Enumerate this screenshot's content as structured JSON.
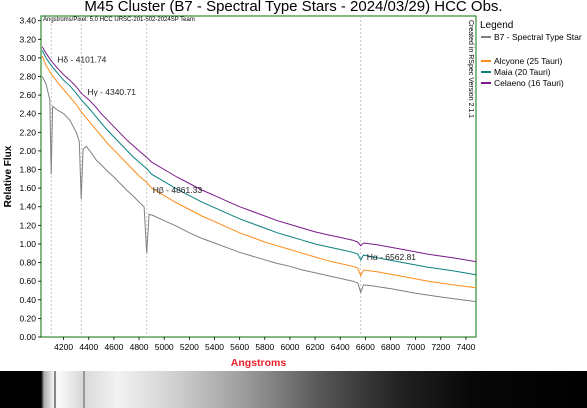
{
  "chart_data": {
    "type": "line",
    "title": "M45 Cluster (B7 - Spectral Type Stars - 2024/03/29) HCC Obs.",
    "subtitle": "Angstroms/Pixel: 5.0 HCC URSC-201-502-2024SP Team",
    "xlabel": "Angstroms",
    "ylabel": "Relative Flux",
    "xlim": [
      4020,
      7480
    ],
    "ylim": [
      0,
      3.45
    ],
    "xticks": [
      4200,
      4400,
      4600,
      4800,
      5000,
      5200,
      5400,
      5600,
      5800,
      6000,
      6200,
      6400,
      6600,
      6800,
      7000,
      7200,
      7400
    ],
    "yticks": [
      0.0,
      0.2,
      0.4,
      0.6,
      0.8,
      1.0,
      1.2,
      1.4,
      1.6,
      1.8,
      2.0,
      2.2,
      2.4,
      2.6,
      2.8,
      3.0,
      3.2,
      3.4
    ],
    "legend_title": "Legend",
    "legend_position": "right",
    "side_label": "Created in RSpec Version 2.1.1",
    "series": [
      {
        "name": "B7 - Spectral Type Star",
        "color": "#808080",
        "points": [
          [
            4030,
            2.8
          ],
          [
            4060,
            2.72
          ],
          [
            4090,
            2.55
          ],
          [
            4101,
            1.75
          ],
          [
            4112,
            2.48
          ],
          [
            4150,
            2.44
          ],
          [
            4200,
            2.4
          ],
          [
            4250,
            2.33
          ],
          [
            4300,
            2.2
          ],
          [
            4325,
            2.1
          ],
          [
            4340,
            1.48
          ],
          [
            4355,
            2.02
          ],
          [
            4380,
            2.05
          ],
          [
            4420,
            1.98
          ],
          [
            4460,
            1.9
          ],
          [
            4500,
            1.85
          ],
          [
            4550,
            1.78
          ],
          [
            4600,
            1.72
          ],
          [
            4650,
            1.65
          ],
          [
            4700,
            1.58
          ],
          [
            4750,
            1.52
          ],
          [
            4800,
            1.45
          ],
          [
            4840,
            1.4
          ],
          [
            4861,
            0.9
          ],
          [
            4880,
            1.32
          ],
          [
            4920,
            1.3
          ],
          [
            5000,
            1.25
          ],
          [
            5100,
            1.19
          ],
          [
            5200,
            1.12
          ],
          [
            5300,
            1.06
          ],
          [
            5400,
            1.01
          ],
          [
            5500,
            0.96
          ],
          [
            5600,
            0.91
          ],
          [
            5700,
            0.87
          ],
          [
            5800,
            0.83
          ],
          [
            5900,
            0.79
          ],
          [
            6000,
            0.76
          ],
          [
            6100,
            0.72
          ],
          [
            6200,
            0.69
          ],
          [
            6300,
            0.66
          ],
          [
            6400,
            0.63
          ],
          [
            6500,
            0.6
          ],
          [
            6540,
            0.58
          ],
          [
            6563,
            0.48
          ],
          [
            6585,
            0.56
          ],
          [
            6650,
            0.55
          ],
          [
            6800,
            0.52
          ],
          [
            7000,
            0.47
          ],
          [
            7200,
            0.43
          ],
          [
            7480,
            0.38
          ]
        ]
      },
      {
        "name": "Alcyone (25 Tauri)",
        "color": "#ff8c1a",
        "points": [
          [
            4030,
            3.02
          ],
          [
            4060,
            2.92
          ],
          [
            4100,
            2.83
          ],
          [
            4150,
            2.74
          ],
          [
            4200,
            2.66
          ],
          [
            4250,
            2.58
          ],
          [
            4300,
            2.5
          ],
          [
            4340,
            2.42
          ],
          [
            4400,
            2.32
          ],
          [
            4450,
            2.24
          ],
          [
            4500,
            2.16
          ],
          [
            4550,
            2.08
          ],
          [
            4600,
            2.01
          ],
          [
            4650,
            1.94
          ],
          [
            4700,
            1.87
          ],
          [
            4750,
            1.8
          ],
          [
            4800,
            1.73
          ],
          [
            4861,
            1.66
          ],
          [
            4900,
            1.6
          ],
          [
            5000,
            1.52
          ],
          [
            5100,
            1.44
          ],
          [
            5200,
            1.37
          ],
          [
            5300,
            1.3
          ],
          [
            5400,
            1.24
          ],
          [
            5500,
            1.18
          ],
          [
            5600,
            1.12
          ],
          [
            5700,
            1.07
          ],
          [
            5800,
            1.02
          ],
          [
            5900,
            0.98
          ],
          [
            6000,
            0.94
          ],
          [
            6100,
            0.9
          ],
          [
            6200,
            0.86
          ],
          [
            6300,
            0.82
          ],
          [
            6400,
            0.79
          ],
          [
            6500,
            0.76
          ],
          [
            6540,
            0.74
          ],
          [
            6563,
            0.66
          ],
          [
            6585,
            0.72
          ],
          [
            6700,
            0.7
          ],
          [
            6900,
            0.65
          ],
          [
            7100,
            0.6
          ],
          [
            7300,
            0.56
          ],
          [
            7480,
            0.53
          ]
        ]
      },
      {
        "name": "Maia (20 Tauri)",
        "color": "#0a7f7f",
        "points": [
          [
            4030,
            3.08
          ],
          [
            4060,
            3.0
          ],
          [
            4100,
            2.92
          ],
          [
            4150,
            2.84
          ],
          [
            4200,
            2.76
          ],
          [
            4250,
            2.7
          ],
          [
            4300,
            2.62
          ],
          [
            4340,
            2.55
          ],
          [
            4400,
            2.46
          ],
          [
            4450,
            2.38
          ],
          [
            4500,
            2.3
          ],
          [
            4550,
            2.22
          ],
          [
            4600,
            2.15
          ],
          [
            4650,
            2.08
          ],
          [
            4700,
            2.01
          ],
          [
            4750,
            1.94
          ],
          [
            4800,
            1.88
          ],
          [
            4861,
            1.81
          ],
          [
            4900,
            1.75
          ],
          [
            5000,
            1.67
          ],
          [
            5100,
            1.59
          ],
          [
            5200,
            1.52
          ],
          [
            5300,
            1.45
          ],
          [
            5400,
            1.39
          ],
          [
            5500,
            1.33
          ],
          [
            5600,
            1.27
          ],
          [
            5700,
            1.22
          ],
          [
            5800,
            1.17
          ],
          [
            5900,
            1.12
          ],
          [
            6000,
            1.08
          ],
          [
            6100,
            1.04
          ],
          [
            6200,
            1.0
          ],
          [
            6300,
            0.97
          ],
          [
            6400,
            0.94
          ],
          [
            6500,
            0.91
          ],
          [
            6540,
            0.89
          ],
          [
            6563,
            0.83
          ],
          [
            6585,
            0.88
          ],
          [
            6700,
            0.85
          ],
          [
            6900,
            0.8
          ],
          [
            7100,
            0.75
          ],
          [
            7300,
            0.71
          ],
          [
            7480,
            0.67
          ]
        ]
      },
      {
        "name": "Celaeno (16 Tauri)",
        "color": "#7a1a8a",
        "points": [
          [
            4030,
            3.12
          ],
          [
            4060,
            3.05
          ],
          [
            4100,
            2.97
          ],
          [
            4150,
            2.89
          ],
          [
            4200,
            2.82
          ],
          [
            4250,
            2.76
          ],
          [
            4300,
            2.69
          ],
          [
            4340,
            2.62
          ],
          [
            4400,
            2.55
          ],
          [
            4450,
            2.48
          ],
          [
            4500,
            2.4
          ],
          [
            4550,
            2.33
          ],
          [
            4600,
            2.26
          ],
          [
            4650,
            2.19
          ],
          [
            4700,
            2.12
          ],
          [
            4750,
            2.06
          ],
          [
            4800,
            2.0
          ],
          [
            4861,
            1.93
          ],
          [
            4900,
            1.88
          ],
          [
            5000,
            1.8
          ],
          [
            5100,
            1.72
          ],
          [
            5200,
            1.65
          ],
          [
            5300,
            1.58
          ],
          [
            5400,
            1.52
          ],
          [
            5500,
            1.46
          ],
          [
            5600,
            1.4
          ],
          [
            5700,
            1.35
          ],
          [
            5800,
            1.3
          ],
          [
            5900,
            1.25
          ],
          [
            6000,
            1.21
          ],
          [
            6100,
            1.17
          ],
          [
            6200,
            1.13
          ],
          [
            6300,
            1.1
          ],
          [
            6400,
            1.07
          ],
          [
            6500,
            1.04
          ],
          [
            6540,
            1.02
          ],
          [
            6563,
            0.98
          ],
          [
            6585,
            1.01
          ],
          [
            6700,
            0.99
          ],
          [
            6900,
            0.94
          ],
          [
            7100,
            0.89
          ],
          [
            7300,
            0.85
          ],
          [
            7480,
            0.81
          ]
        ]
      }
    ],
    "annotations": [
      {
        "text": "Hδ - 4101.74",
        "x": 4101.74,
        "y": 2.95
      },
      {
        "text": "Hγ - 4340.71",
        "x": 4340.71,
        "y": 2.6
      },
      {
        "text": "Hβ - 4861.33",
        "x": 4861.33,
        "y": 1.55
      },
      {
        "text": "Hα - 6562.81",
        "x": 6562.81,
        "y": 0.83
      }
    ],
    "grid": false
  }
}
